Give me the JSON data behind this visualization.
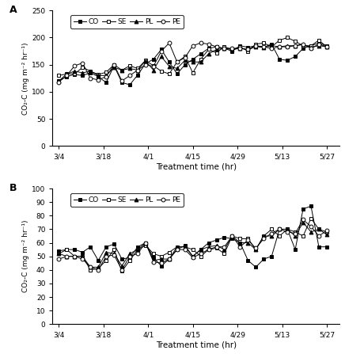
{
  "x_labels": [
    "3/4",
    "3/18",
    "4/1",
    "4/15",
    "4/29",
    "5/13",
    "5/27"
  ],
  "panel_A": {
    "ylabel": "CO₂-C (mg m⁻² hr⁻¹)",
    "ylim": [
      0,
      250
    ],
    "yticks": [
      0,
      50,
      100,
      150,
      200,
      250
    ],
    "CO": [
      121,
      128,
      132,
      130,
      135,
      128,
      117,
      148,
      117,
      113,
      131,
      152,
      160,
      178,
      155,
      133,
      150,
      160,
      170,
      180,
      183,
      180,
      175,
      185,
      182,
      185,
      182,
      188,
      160,
      158,
      165,
      180,
      185,
      190,
      185
    ],
    "SE": [
      130,
      133,
      133,
      145,
      138,
      132,
      136,
      150,
      140,
      148,
      143,
      158,
      148,
      138,
      133,
      155,
      165,
      135,
      160,
      178,
      172,
      183,
      178,
      183,
      175,
      188,
      190,
      183,
      195,
      200,
      193,
      185,
      185,
      195,
      183
    ],
    "PL": [
      120,
      133,
      138,
      135,
      138,
      130,
      130,
      145,
      140,
      143,
      140,
      157,
      140,
      165,
      147,
      143,
      158,
      155,
      155,
      170,
      178,
      180,
      178,
      180,
      178,
      183,
      182,
      185,
      183,
      185,
      185,
      187,
      182,
      185,
      183
    ],
    "PE": [
      118,
      130,
      148,
      153,
      125,
      122,
      128,
      150,
      120,
      130,
      140,
      150,
      147,
      175,
      190,
      155,
      163,
      185,
      190,
      188,
      183,
      180,
      180,
      180,
      178,
      185,
      183,
      180,
      183,
      183,
      185,
      188,
      180,
      188,
      183
    ]
  },
  "panel_B": {
    "ylabel": "CO₂-C (mg m⁻² hr⁻¹)",
    "ylim": [
      0,
      100
    ],
    "yticks": [
      0,
      10,
      20,
      30,
      40,
      50,
      60,
      70,
      80,
      90,
      100
    ],
    "CO": [
      54,
      55,
      55,
      53,
      57,
      47,
      57,
      59,
      48,
      49,
      57,
      60,
      49,
      43,
      48,
      55,
      58,
      50,
      55,
      60,
      62,
      64,
      63,
      60,
      47,
      42,
      48,
      50,
      70,
      70,
      55,
      85,
      87,
      57,
      57
    ],
    "SE": [
      52,
      55,
      50,
      50,
      40,
      41,
      47,
      55,
      39,
      47,
      55,
      58,
      52,
      50,
      53,
      57,
      57,
      55,
      50,
      55,
      56,
      52,
      65,
      63,
      63,
      55,
      65,
      70,
      65,
      70,
      68,
      65,
      78,
      70,
      68
    ],
    "PL": [
      52,
      50,
      50,
      50,
      42,
      42,
      53,
      52,
      43,
      52,
      55,
      60,
      47,
      48,
      48,
      57,
      57,
      50,
      55,
      57,
      58,
      55,
      65,
      60,
      60,
      55,
      65,
      65,
      70,
      70,
      65,
      75,
      68,
      70,
      66
    ],
    "PE": [
      48,
      50,
      50,
      48,
      42,
      40,
      50,
      51,
      40,
      50,
      52,
      60,
      46,
      45,
      48,
      55,
      55,
      49,
      52,
      55,
      57,
      57,
      65,
      57,
      62,
      56,
      63,
      67,
      70,
      68,
      67,
      77,
      72,
      65,
      69
    ]
  },
  "xlabel": "Treatment time (hr)",
  "label_A": "A",
  "label_B": "B",
  "series_styles": {
    "CO": {
      "marker": "s",
      "fillstyle": "full",
      "linestyle": "-"
    },
    "SE": {
      "marker": "s",
      "fillstyle": "none",
      "linestyle": "-"
    },
    "PL": {
      "marker": "^",
      "fillstyle": "full",
      "linestyle": "-"
    },
    "PE": {
      "marker": "o",
      "fillstyle": "none",
      "linestyle": "-"
    }
  }
}
